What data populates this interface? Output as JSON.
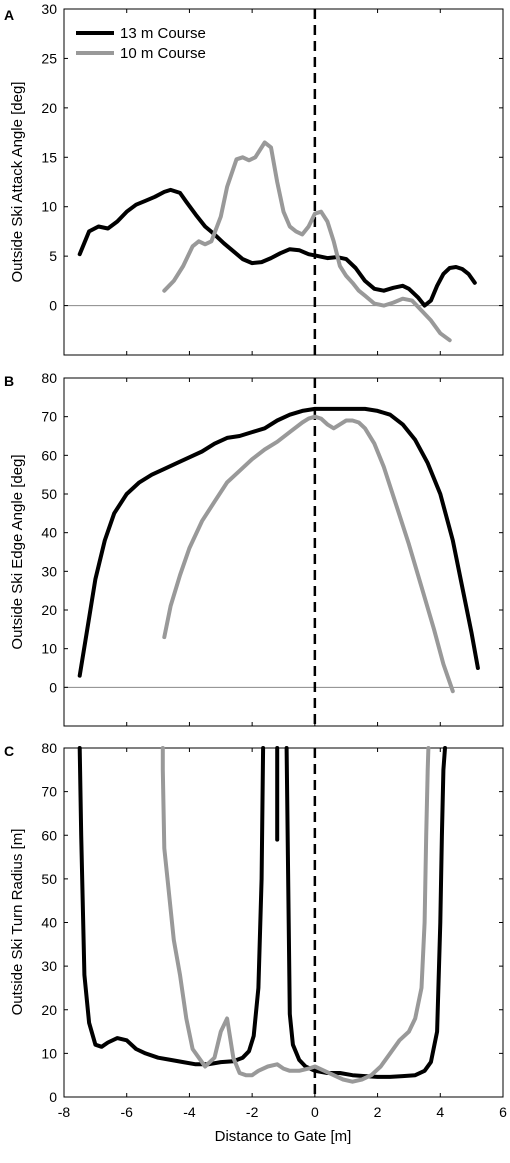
{
  "chart_data": [
    {
      "panel": "A",
      "type": "line",
      "ylabel": "Outside Ski Attack Angle [deg]",
      "xlim": [
        -8,
        6
      ],
      "ylim": [
        -5,
        30
      ],
      "yticks": [
        0,
        5,
        10,
        15,
        20,
        25,
        30
      ],
      "reference_lines": [
        "y=0",
        "x=0 (dashed)"
      ],
      "legend": {
        "placement": "top-left",
        "entries": [
          "13 m Course",
          "10 m Course"
        ]
      },
      "series": [
        {
          "name": "13 m Course",
          "color": "#000000",
          "x": [
            -7.5,
            -7.2,
            -6.9,
            -6.6,
            -6.3,
            -6.0,
            -5.7,
            -5.4,
            -5.1,
            -4.8,
            -4.6,
            -4.3,
            -4.1,
            -3.8,
            -3.5,
            -3.2,
            -2.9,
            -2.6,
            -2.3,
            -2.0,
            -1.7,
            -1.4,
            -1.1,
            -0.8,
            -0.5,
            -0.2,
            0.1,
            0.4,
            0.7,
            1.0,
            1.3,
            1.6,
            1.9,
            2.2,
            2.5,
            2.8,
            3.0,
            3.3,
            3.5,
            3.7,
            3.9,
            4.1,
            4.3,
            4.5,
            4.7,
            4.9,
            5.1
          ],
          "y": [
            5.2,
            7.5,
            8.0,
            7.8,
            8.5,
            9.5,
            10.2,
            10.6,
            11.0,
            11.5,
            11.7,
            11.4,
            10.5,
            9.2,
            8.0,
            7.2,
            6.3,
            5.5,
            4.7,
            4.3,
            4.4,
            4.8,
            5.3,
            5.7,
            5.6,
            5.2,
            5.0,
            4.8,
            4.9,
            4.7,
            3.8,
            2.5,
            1.7,
            1.5,
            1.8,
            2.0,
            1.7,
            0.8,
            0.0,
            0.5,
            2.0,
            3.2,
            3.8,
            3.9,
            3.7,
            3.2,
            2.3
          ]
        },
        {
          "name": "10 m Course",
          "color": "#999999",
          "x": [
            -4.8,
            -4.5,
            -4.2,
            -3.9,
            -3.7,
            -3.5,
            -3.3,
            -3.0,
            -2.8,
            -2.5,
            -2.3,
            -2.1,
            -1.9,
            -1.6,
            -1.4,
            -1.2,
            -1.0,
            -0.8,
            -0.6,
            -0.4,
            -0.2,
            0.0,
            0.2,
            0.4,
            0.6,
            0.8,
            1.0,
            1.2,
            1.4,
            1.6,
            1.9,
            2.2,
            2.5,
            2.8,
            3.1,
            3.4,
            3.7,
            4.0,
            4.3
          ],
          "y": [
            1.5,
            2.5,
            4.0,
            6.0,
            6.5,
            6.2,
            6.5,
            9.0,
            12.0,
            14.8,
            15.0,
            14.7,
            15.0,
            16.5,
            16.0,
            12.5,
            9.5,
            8.0,
            7.5,
            7.2,
            8.0,
            9.3,
            9.5,
            8.5,
            6.5,
            4.0,
            3.0,
            2.3,
            1.5,
            1.0,
            0.2,
            0.0,
            0.3,
            0.7,
            0.5,
            -0.5,
            -1.5,
            -2.8,
            -3.5
          ]
        }
      ]
    },
    {
      "panel": "B",
      "type": "line",
      "ylabel": "Outside Ski Edge Angle [deg]",
      "xlim": [
        -8,
        6
      ],
      "ylim": [
        -10,
        80
      ],
      "yticks": [
        0,
        10,
        20,
        30,
        40,
        50,
        60,
        70,
        80
      ],
      "reference_lines": [
        "y=0",
        "x=0 (dashed)"
      ],
      "series": [
        {
          "name": "13 m Course",
          "color": "#000000",
          "x": [
            -7.5,
            -7.3,
            -7.0,
            -6.7,
            -6.4,
            -6.0,
            -5.6,
            -5.2,
            -4.8,
            -4.4,
            -4.0,
            -3.6,
            -3.2,
            -2.8,
            -2.4,
            -2.0,
            -1.6,
            -1.2,
            -0.8,
            -0.4,
            0.0,
            0.4,
            0.8,
            1.2,
            1.6,
            2.0,
            2.4,
            2.8,
            3.2,
            3.6,
            4.0,
            4.4,
            4.7,
            5.0,
            5.2
          ],
          "y": [
            3,
            13,
            28,
            38,
            45,
            50,
            53,
            55,
            56.5,
            58,
            59.5,
            61,
            63,
            64.5,
            65,
            66,
            67,
            69,
            70.5,
            71.5,
            72,
            72,
            72,
            72,
            72,
            71.5,
            70.5,
            68,
            64,
            58,
            50,
            38,
            26,
            14,
            5
          ]
        },
        {
          "name": "10 m Course",
          "color": "#999999",
          "x": [
            -4.8,
            -4.6,
            -4.3,
            -4.0,
            -3.6,
            -3.2,
            -2.8,
            -2.4,
            -2.0,
            -1.6,
            -1.2,
            -0.8,
            -0.4,
            -0.2,
            0.0,
            0.2,
            0.4,
            0.6,
            0.8,
            1.0,
            1.2,
            1.4,
            1.6,
            1.9,
            2.2,
            2.6,
            3.0,
            3.4,
            3.8,
            4.1,
            4.4
          ],
          "y": [
            13,
            21,
            29,
            36,
            43,
            48,
            53,
            56,
            59,
            61.5,
            63.5,
            66,
            68.5,
            69.5,
            70,
            69.5,
            68,
            67,
            68,
            69,
            69,
            68.5,
            67,
            63,
            57,
            47,
            37,
            26,
            15,
            6,
            -1
          ]
        }
      ]
    },
    {
      "panel": "C",
      "type": "line",
      "ylabel": "Outside Ski Turn Radius [m]",
      "xlabel": "Distance to Gate [m]",
      "xlim": [
        -8,
        6
      ],
      "ylim": [
        0,
        80
      ],
      "xticks": [
        -8,
        -6,
        -4,
        -2,
        0,
        2,
        4,
        6
      ],
      "yticks": [
        0,
        10,
        20,
        30,
        40,
        50,
        60,
        70,
        80
      ],
      "reference_lines": [
        "x=0 (dashed)"
      ],
      "series": [
        {
          "name": "13 m Course",
          "color": "#000000",
          "segments": [
            {
              "x": [
                -7.5,
                -7.45,
                -7.35,
                -7.2,
                -7.0,
                -6.8,
                -6.6,
                -6.3,
                -6.0,
                -5.7,
                -5.4,
                -5.0,
                -4.6,
                -4.2,
                -3.8,
                -3.4,
                -3.0,
                -2.6,
                -2.3,
                -2.1,
                -1.95,
                -1.8,
                -1.7,
                -1.65
              ],
              "y": [
                80,
                60,
                28,
                17,
                12,
                11.5,
                12.5,
                13.5,
                13,
                11,
                10,
                9,
                8.5,
                8,
                7.5,
                7.5,
                8,
                8.2,
                9,
                10.5,
                14,
                25,
                50,
                80
              ]
            },
            {
              "x": [
                -1.2,
                -1.2,
                -1.2
              ],
              "y": [
                80,
                70,
                59
              ]
            },
            {
              "x": [
                -0.9,
                -0.8,
                -0.7,
                -0.5,
                -0.3,
                0.0,
                0.4,
                0.8,
                1.2,
                1.6,
                2.0,
                2.4,
                2.8,
                3.2,
                3.5,
                3.7,
                3.9,
                4.0,
                4.05,
                4.1,
                4.15
              ],
              "y": [
                80,
                19,
                12,
                8.5,
                7,
                6,
                5.5,
                5.5,
                5,
                4.8,
                4.6,
                4.6,
                4.8,
                5,
                6,
                8,
                15,
                40,
                60,
                75,
                80
              ]
            }
          ]
        },
        {
          "name": "10 m Course",
          "color": "#999999",
          "segments": [
            {
              "x": [
                -4.85,
                -4.85,
                -4.8,
                -4.7,
                -4.5,
                -4.3,
                -4.1,
                -3.9,
                -3.7,
                -3.5,
                -3.2,
                -3.0,
                -2.8,
                -2.6,
                -2.4,
                -2.2,
                -2.0,
                -1.8,
                -1.5,
                -1.2,
                -1.0,
                -0.8,
                -0.5,
                -0.2,
                0.0,
                0.3,
                0.6,
                0.9,
                1.2,
                1.5,
                1.8,
                2.1,
                2.4,
                2.7,
                3.0,
                3.2,
                3.4,
                3.5,
                3.55,
                3.6,
                3.62
              ],
              "y": [
                80,
                75,
                57,
                50,
                36,
                28,
                18,
                11,
                9,
                7,
                9,
                15,
                18,
                9,
                5.5,
                5,
                5,
                6,
                7,
                7.5,
                6.5,
                6,
                6,
                6.5,
                7,
                6,
                5,
                4,
                3.5,
                4,
                5,
                7,
                10,
                13,
                15,
                18,
                25,
                40,
                60,
                75,
                80
              ]
            }
          ]
        }
      ]
    }
  ]
}
